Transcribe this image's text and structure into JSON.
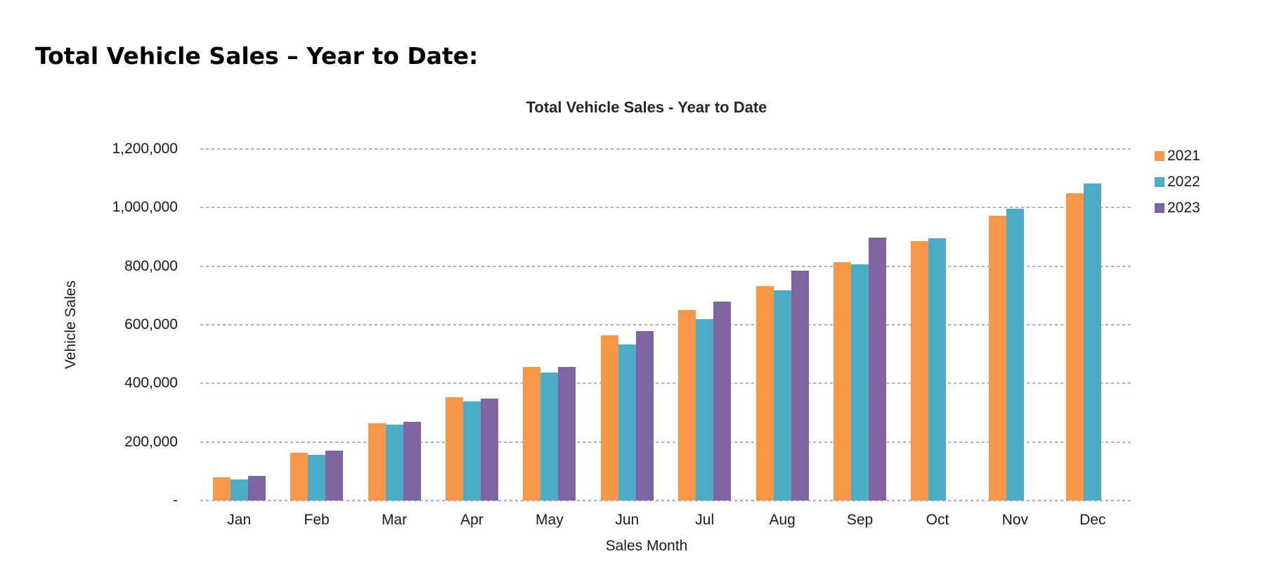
{
  "page": {
    "title": "Total Vehicle Sales – Year to Date:"
  },
  "chart_data": {
    "type": "bar",
    "title": "Total Vehicle Sales - Year to Date",
    "xlabel": "Sales Month",
    "ylabel": "Vehicle Sales",
    "categories": [
      "Jan",
      "Feb",
      "Mar",
      "Apr",
      "May",
      "Jun",
      "Jul",
      "Aug",
      "Sep",
      "Oct",
      "Nov",
      "Dec"
    ],
    "series": [
      {
        "name": "2021",
        "color": "#F79646",
        "values": [
          80000,
          163000,
          264000,
          352000,
          455000,
          565000,
          650000,
          731000,
          814000,
          886000,
          973000,
          1050000
        ]
      },
      {
        "name": "2022",
        "color": "#4BACC6",
        "values": [
          72000,
          156000,
          259000,
          338000,
          437000,
          534000,
          619000,
          717000,
          806000,
          896000,
          995000,
          1083000
        ]
      },
      {
        "name": "2023",
        "color": "#8064A2",
        "values": [
          85000,
          170000,
          269000,
          348000,
          456000,
          578000,
          679000,
          786000,
          897000,
          null,
          null,
          null
        ]
      }
    ],
    "ylim": [
      0,
      1200000
    ],
    "yticks": [
      {
        "value": 1200000,
        "label": "1,200,000"
      },
      {
        "value": 1000000,
        "label": "1,000,000"
      },
      {
        "value": 800000,
        "label": "800,000"
      },
      {
        "value": 600000,
        "label": "600,000"
      },
      {
        "value": 400000,
        "label": "400,000"
      },
      {
        "value": 200000,
        "label": "200,000"
      },
      {
        "value": 0,
        "label": "-"
      }
    ],
    "grid": "horizontal-dashed",
    "legend_position": "right"
  },
  "colors": {
    "gridline": "#A8AECC",
    "text": "#1a1a1a"
  }
}
